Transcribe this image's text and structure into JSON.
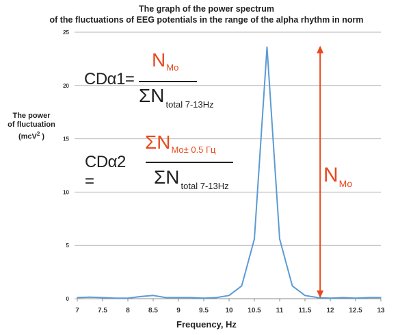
{
  "chart_data": {
    "type": "line",
    "title_line1": "The graph of the power spectrum",
    "title_line2": "of the fluctuations of EEG potentials in the range of the alpha rhythm in norm",
    "ylabel_line1": "The power",
    "ylabel_line2": "of fluctuation",
    "ylabel_unit_prefix": "(mcV",
    "ylabel_unit_sup": "2",
    "ylabel_unit_suffix": " )",
    "xlabel": "Frequency, Hz",
    "xlim": [
      7,
      13
    ],
    "ylim": [
      0,
      25
    ],
    "x_ticks": [
      "7",
      "7.5",
      "8",
      "8.5",
      "9",
      "9.5",
      "10",
      "10.5",
      "11",
      "11.5",
      "12",
      "12.5",
      "13"
    ],
    "y_ticks": [
      "0",
      "5",
      "10",
      "15",
      "20",
      "25"
    ],
    "grid": "horizontal",
    "series": [
      {
        "color": "#5b9bd5",
        "x": [
          7,
          7.25,
          7.5,
          7.75,
          8,
          8.25,
          8.5,
          8.75,
          9,
          9.25,
          9.5,
          9.75,
          10,
          10.25,
          10.5,
          10.75,
          11,
          11.25,
          11.5,
          11.75,
          12,
          12.25,
          12.5,
          12.75,
          13
        ],
        "y": [
          0.1,
          0.15,
          0.1,
          0.05,
          0.05,
          0.2,
          0.3,
          0.1,
          0.1,
          0.1,
          0.05,
          0.1,
          0.3,
          1.2,
          5.6,
          23.6,
          5.6,
          1.2,
          0.3,
          0.1,
          0.05,
          0.1,
          0.05,
          0.1,
          0.1
        ]
      }
    ],
    "arrow": {
      "x": 11.8,
      "y_from": 0,
      "y_to": 23.6,
      "color": "#e8491d"
    }
  },
  "formula1": {
    "lhs": "CDα1=",
    "num_main": "N",
    "num_sub": "Mo",
    "den_main": "ΣN",
    "den_sub": "total 7-13Hz"
  },
  "formula2": {
    "lhs": "CDα2 =",
    "num_main": "ΣN",
    "num_sub": "Mo± 0.5 Гц",
    "den_main": "ΣN",
    "den_sub": "total 7-13Hz"
  },
  "arrow_label": {
    "main": "N",
    "sub": "Mo"
  }
}
